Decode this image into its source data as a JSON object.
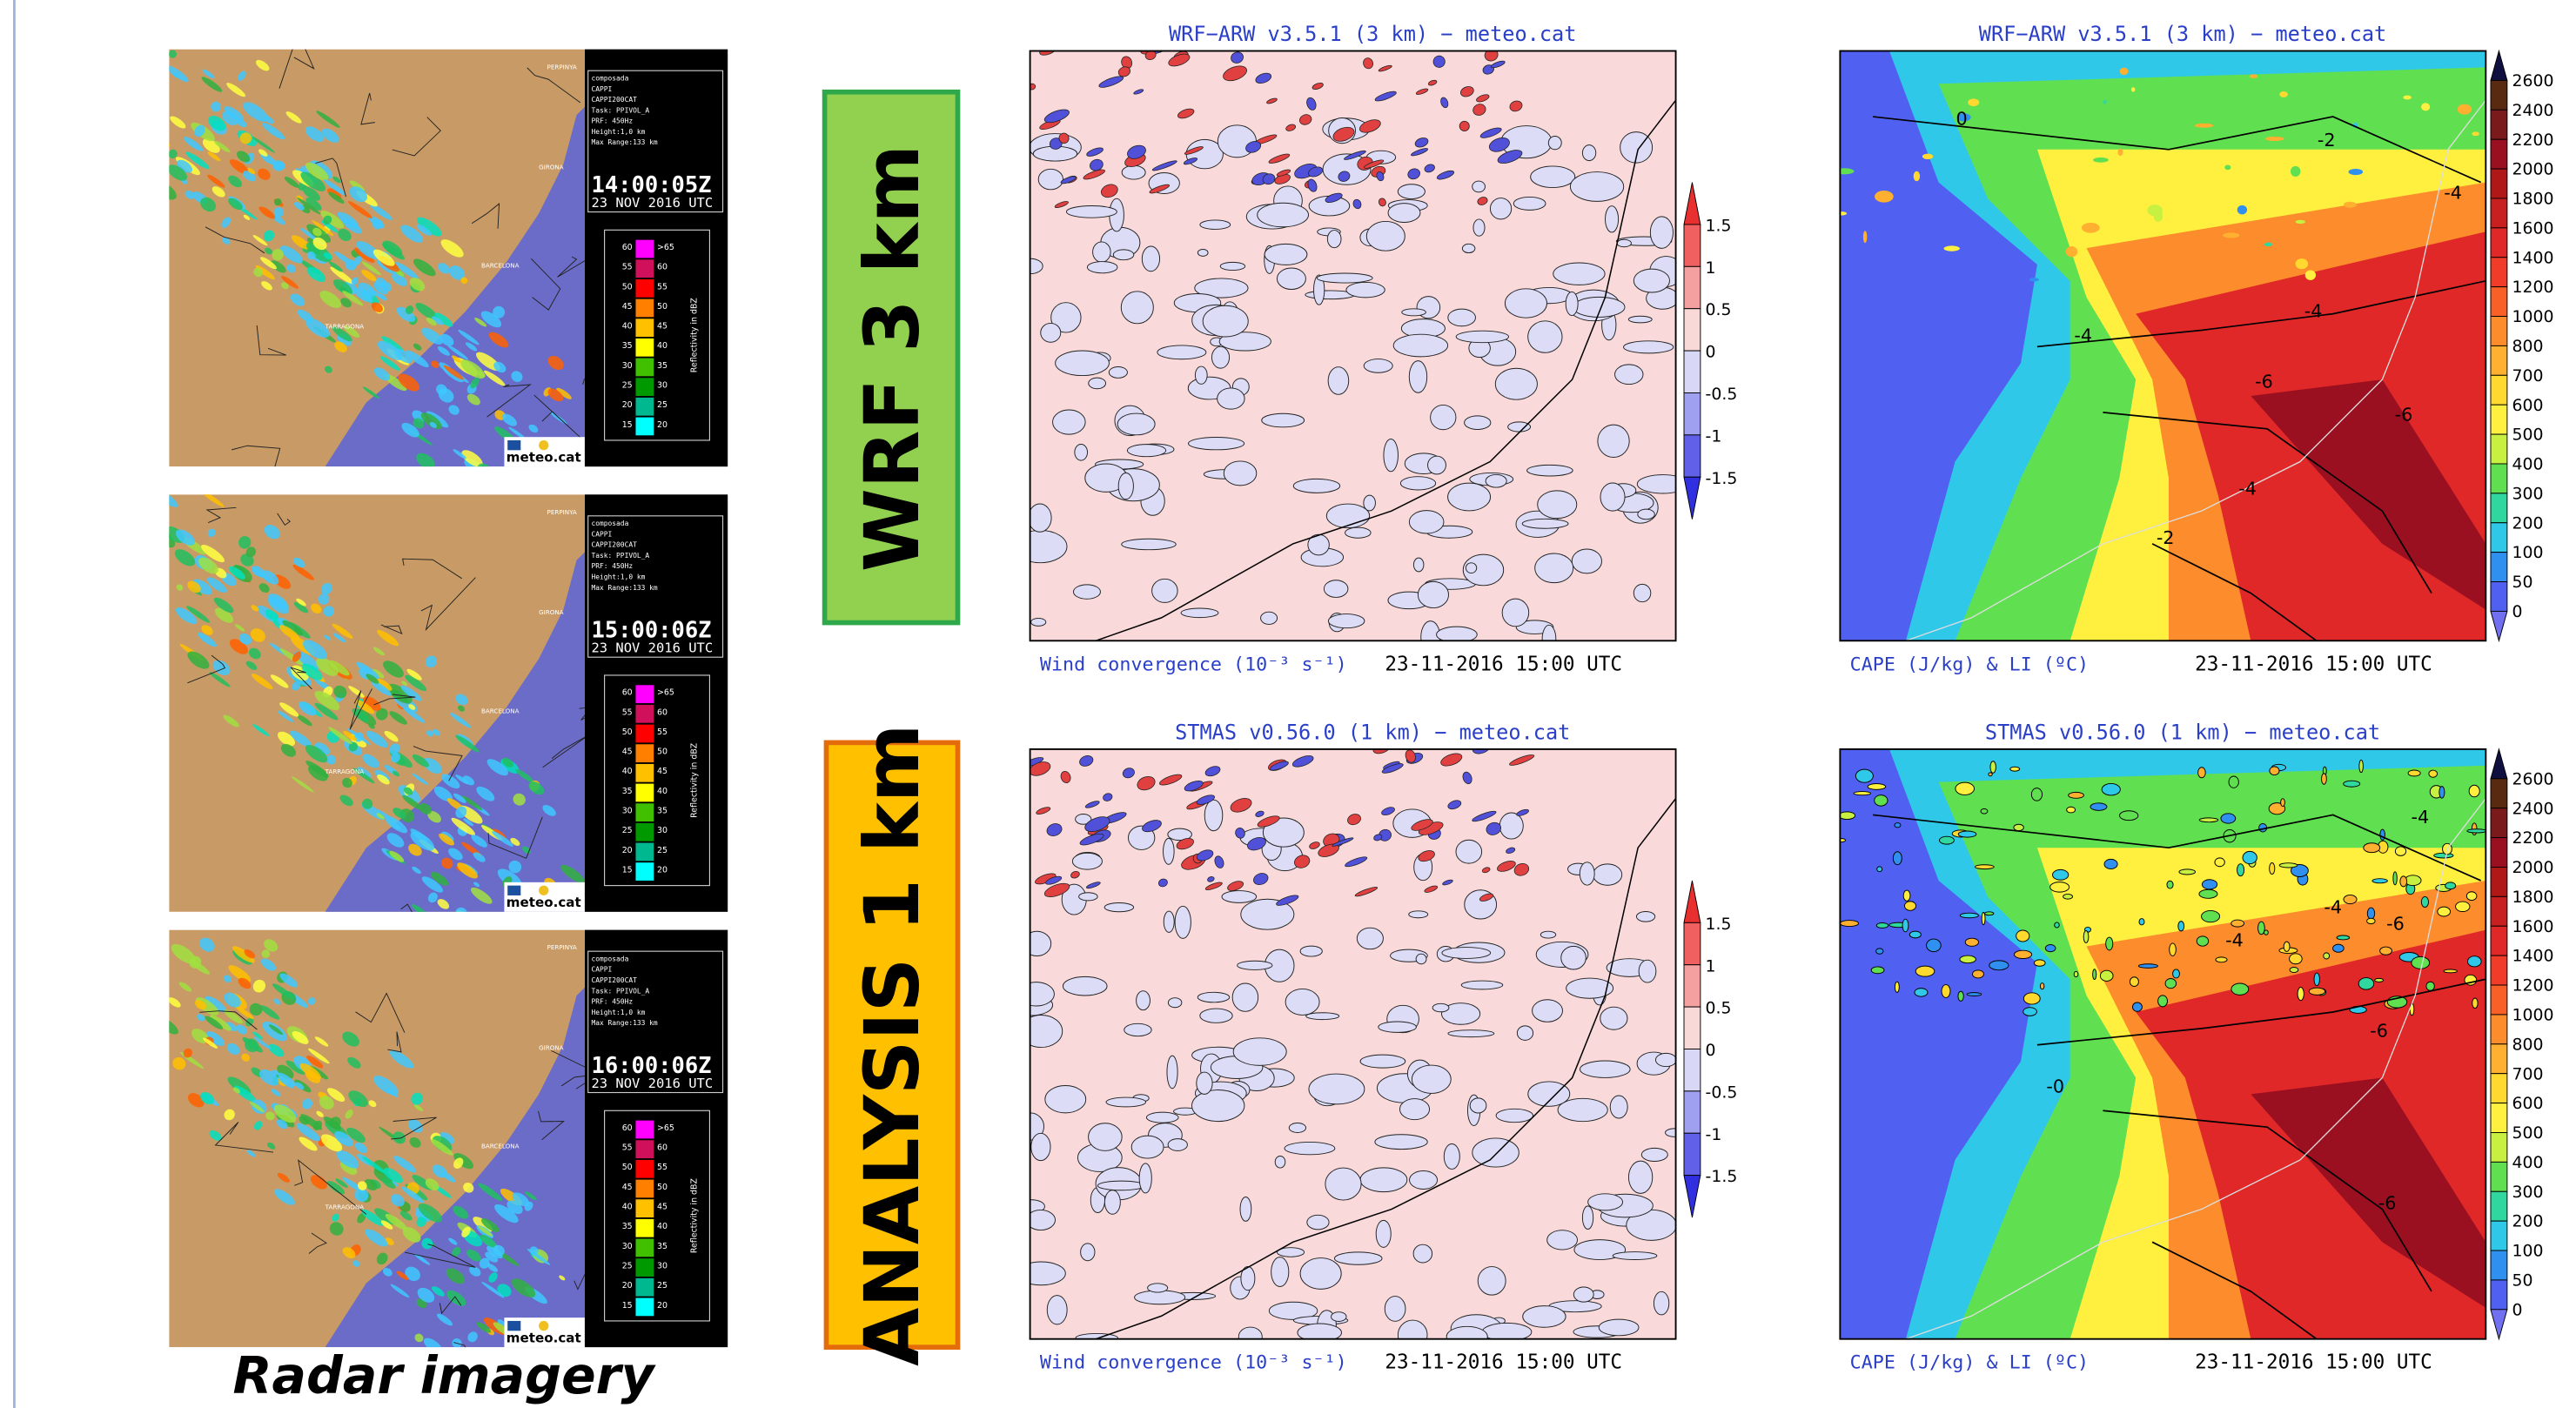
{
  "radar": {
    "caption": "Radar imagery",
    "panels": [
      {
        "info": [
          "composada",
          "CAPPI",
          "CAPPI200CAT",
          "Task: PPIVOL_A",
          "PRF: 450Hz",
          "Height:1,0 km",
          "Max Range:133 km"
        ],
        "time": "14:00:05Z",
        "date": "23 NOV 2016 UTC"
      },
      {
        "info": [
          "composada",
          "CAPPI",
          "CAPPI200CAT",
          "Task: PPIVOL_A",
          "PRF: 450Hz",
          "Height:1,0 km",
          "Max Range:133 km"
        ],
        "time": "15:00:06Z",
        "date": "23 NOV 2016 UTC"
      },
      {
        "info": [
          "composada",
          "CAPPI",
          "CAPPI200CAT",
          "Task: PPIVOL_A",
          "PRF: 450Hz",
          "Height:1,0 km",
          "Max Range:133 km"
        ],
        "time": "16:00:06Z",
        "date": "23 NOV 2016 UTC"
      }
    ],
    "places": [
      "PERPINYA",
      "GIRONA",
      "BARCELONA",
      "TARRAGONA"
    ],
    "legend": {
      "title": "Reflectivity in dBZ",
      "rows": [
        [
          "60",
          ">65"
        ],
        [
          "55",
          "60"
        ],
        [
          "50",
          "55"
        ],
        [
          "45",
          "50"
        ],
        [
          "40",
          "45"
        ],
        [
          "35",
          "40"
        ],
        [
          "30",
          "35"
        ],
        [
          "25",
          "30"
        ],
        [
          "20",
          "25"
        ],
        [
          "15",
          "20"
        ]
      ],
      "colors": [
        "#ff00ff",
        "#d0105a",
        "#ff0000",
        "#ff7f00",
        "#ffc000",
        "#ffff00",
        "#40c000",
        "#009a00",
        "#00b890",
        "#00ffff"
      ]
    },
    "logo": "meteo.cat"
  },
  "rows": [
    {
      "label": "WRF 3 km",
      "maps": [
        {
          "title": "WRF−ARW v3.5.1 (3 km) − meteo.cat",
          "field": "Wind convergence (10⁻³ s⁻¹)",
          "time": "23-11-2016 15:00 UTC"
        },
        {
          "title": "WRF−ARW v3.5.1 (3 km) − meteo.cat",
          "field": "CAPE (J/kg) & LI (ºC)",
          "time": "23-11-2016 15:00 UTC",
          "contour_labels": [
            "0",
            "-2",
            "-4",
            "-4",
            "-4",
            "-6",
            "-6",
            "-4",
            "-2"
          ]
        }
      ]
    },
    {
      "label": "ANALYSIS 1 km",
      "maps": [
        {
          "title": "STMAS v0.56.0 (1 km) − meteo.cat",
          "field": "Wind convergence (10⁻³ s⁻¹)",
          "time": "23-11-2016 15:00 UTC"
        },
        {
          "title": "STMAS v0.56.0 (1 km) − meteo.cat",
          "field": "CAPE (J/kg) & LI (ºC)",
          "time": "23-11-2016 15:00 UTC",
          "contour_labels": [
            "-4",
            "-4",
            "-6",
            "-6",
            "-0",
            "-6",
            "-4"
          ]
        }
      ]
    }
  ],
  "colorbars": {
    "convergence": {
      "ticks": [
        "1.5",
        "1",
        "0.5",
        "0",
        "-0.5",
        "-1",
        "-1.5"
      ],
      "colors": [
        "#e83030",
        "#f06060",
        "#f4a0a0",
        "#f9d8d8",
        "#d8d8f6",
        "#a0a0f0",
        "#6060e8",
        "#3030e0"
      ]
    },
    "cape": {
      "ticks": [
        "2600",
        "2400",
        "2200",
        "2000",
        "1800",
        "1600",
        "1400",
        "1200",
        "1000",
        "800",
        "700",
        "600",
        "500",
        "400",
        "300",
        "200",
        "100",
        "50",
        "0"
      ],
      "colors": [
        "#101040",
        "#5a2a10",
        "#7a1a1a",
        "#9a1020",
        "#b01818",
        "#c82020",
        "#e02828",
        "#f03c28",
        "#f86028",
        "#fc8c2c",
        "#ffb030",
        "#ffd830",
        "#fff040",
        "#c8f040",
        "#60e050",
        "#30d8a0",
        "#30c8e8",
        "#3090f0",
        "#5060f0",
        "#7070f0"
      ]
    }
  }
}
